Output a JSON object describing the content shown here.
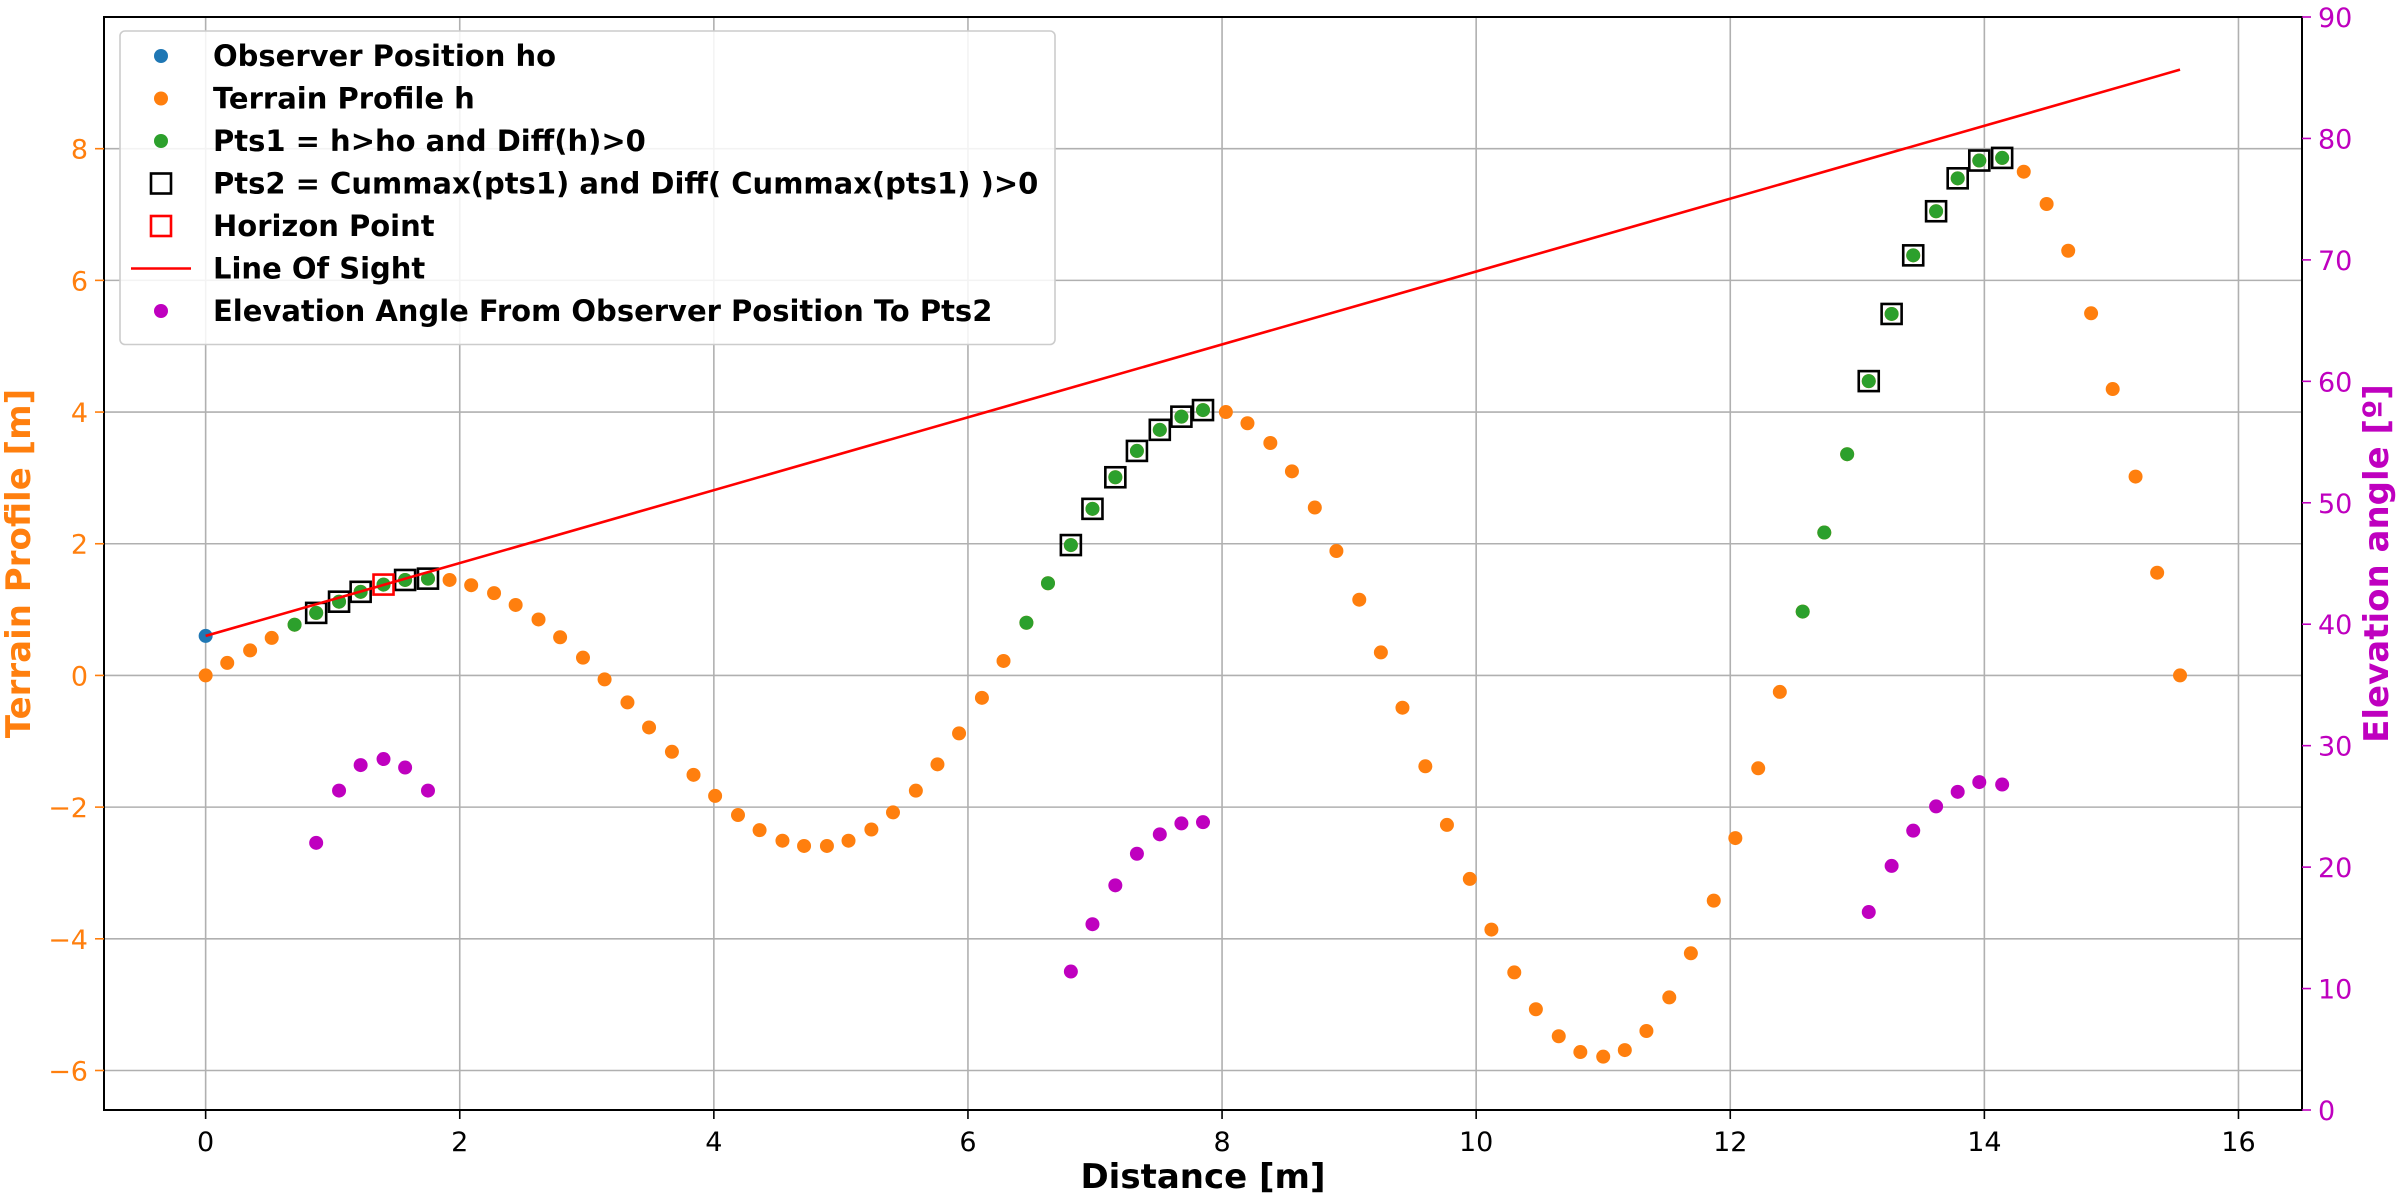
{
  "chart_data": {
    "type": "scatter",
    "title": "",
    "xlabel": "Distance [m]",
    "ylabel": "Terrain Profile [m]",
    "y2label": "Elevation angle [º]",
    "xlim": [
      -0.8,
      16.5
    ],
    "ylim": [
      -6.6,
      10.0
    ],
    "y2lim": [
      0,
      90
    ],
    "xticks": [
      0,
      2,
      4,
      6,
      8,
      10,
      12,
      14,
      16
    ],
    "xtick_labels": [
      "0",
      "2",
      "4",
      "6",
      "8",
      "10",
      "12",
      "14",
      "16"
    ],
    "yticks": [
      -6,
      -4,
      -2,
      0,
      2,
      4,
      6,
      8
    ],
    "ytick_labels": [
      "−6",
      "−4",
      "−2",
      "0",
      "2",
      "4",
      "6",
      "8"
    ],
    "y2ticks": [
      0,
      10,
      20,
      30,
      40,
      50,
      60,
      70,
      80,
      90
    ],
    "y2tick_labels": [
      "0",
      "10",
      "20",
      "30",
      "40",
      "50",
      "60",
      "70",
      "80",
      "90"
    ],
    "grid": true,
    "legend_location": "upper-left",
    "colors": {
      "observer": "#1f77b4",
      "terrain": "#ff7f0e",
      "pts1": "#2ca02c",
      "pts2": "#000000",
      "horizon": "#ff0000",
      "line_of_sight": "#ff0000",
      "elevation": "#bf00bf",
      "left_axis": "#ff7f0e",
      "right_axis": "#bf00bf"
    },
    "legend": [
      {
        "label": "Observer Position ho",
        "marker": "dot",
        "color": "#1f77b4"
      },
      {
        "label": "Terrain Profile h",
        "marker": "dot",
        "color": "#ff7f0e"
      },
      {
        "label": "Pts1 = h>ho and Diff(h)>0",
        "marker": "dot",
        "color": "#2ca02c"
      },
      {
        "label": "Pts2 = Cummax(pts1) and Diff( Cummax(pts1) )>0",
        "marker": "square",
        "color": "#000000"
      },
      {
        "label": "Horizon Point",
        "marker": "square",
        "color": "#ff0000"
      },
      {
        "label": "Line Of Sight",
        "marker": "line",
        "color": "#ff0000"
      },
      {
        "label": "Elevation Angle From Observer Position To Pts2",
        "marker": "dot",
        "color": "#bf00bf"
      }
    ],
    "series": [
      {
        "name": "Observer Position ho",
        "axis": "left",
        "points": [
          [
            0,
            0.6
          ]
        ]
      },
      {
        "name": "Terrain Profile h",
        "axis": "left",
        "points": [
          [
            0.0,
            0.0
          ],
          [
            0.17,
            0.19
          ],
          [
            0.35,
            0.38
          ],
          [
            0.52,
            0.57
          ],
          [
            0.7,
            0.77
          ],
          [
            0.87,
            0.95
          ],
          [
            1.05,
            1.12
          ],
          [
            1.22,
            1.27
          ],
          [
            1.4,
            1.38
          ],
          [
            1.57,
            1.45
          ],
          [
            1.75,
            1.47
          ],
          [
            1.92,
            1.45
          ],
          [
            2.09,
            1.37
          ],
          [
            2.27,
            1.25
          ],
          [
            2.44,
            1.07
          ],
          [
            2.62,
            0.85
          ],
          [
            2.79,
            0.58
          ],
          [
            2.97,
            0.27
          ],
          [
            3.14,
            -0.06
          ],
          [
            3.32,
            -0.41
          ],
          [
            3.49,
            -0.79
          ],
          [
            3.67,
            -1.16
          ],
          [
            3.84,
            -1.51
          ],
          [
            4.01,
            -1.83
          ],
          [
            4.19,
            -2.12
          ],
          [
            4.36,
            -2.35
          ],
          [
            4.54,
            -2.51
          ],
          [
            4.71,
            -2.59
          ],
          [
            4.89,
            -2.59
          ],
          [
            5.06,
            -2.51
          ],
          [
            5.24,
            -2.34
          ],
          [
            5.41,
            -2.08
          ],
          [
            5.59,
            -1.75
          ],
          [
            5.76,
            -1.35
          ],
          [
            5.93,
            -0.88
          ],
          [
            6.11,
            -0.34
          ],
          [
            6.28,
            0.22
          ],
          [
            6.46,
            0.8
          ],
          [
            6.63,
            1.4
          ],
          [
            6.81,
            1.98
          ],
          [
            6.98,
            2.53
          ],
          [
            7.16,
            3.01
          ],
          [
            7.33,
            3.41
          ],
          [
            7.51,
            3.73
          ],
          [
            7.68,
            3.93
          ],
          [
            7.85,
            4.03
          ],
          [
            8.03,
            4.0
          ],
          [
            8.2,
            3.83
          ],
          [
            8.38,
            3.53
          ],
          [
            8.55,
            3.1
          ],
          [
            8.73,
            2.55
          ],
          [
            8.9,
            1.89
          ],
          [
            9.08,
            1.15
          ],
          [
            9.25,
            0.35
          ],
          [
            9.42,
            -0.49
          ],
          [
            9.6,
            -1.38
          ],
          [
            9.77,
            -2.27
          ],
          [
            9.95,
            -3.09
          ],
          [
            10.12,
            -3.86
          ],
          [
            10.3,
            -4.51
          ],
          [
            10.47,
            -5.07
          ],
          [
            10.65,
            -5.48
          ],
          [
            10.82,
            -5.72
          ],
          [
            11.0,
            -5.79
          ],
          [
            11.17,
            -5.69
          ],
          [
            11.34,
            -5.4
          ],
          [
            11.52,
            -4.89
          ],
          [
            11.69,
            -4.22
          ],
          [
            11.87,
            -3.42
          ],
          [
            12.04,
            -2.47
          ],
          [
            12.22,
            -1.41
          ],
          [
            12.39,
            -0.25
          ],
          [
            12.57,
            0.97
          ],
          [
            12.74,
            2.17
          ],
          [
            12.92,
            3.36
          ],
          [
            13.09,
            4.47
          ],
          [
            13.27,
            5.49
          ],
          [
            13.44,
            6.38
          ],
          [
            13.62,
            7.05
          ],
          [
            13.79,
            7.55
          ],
          [
            13.96,
            7.82
          ],
          [
            14.14,
            7.86
          ],
          [
            14.31,
            7.65
          ],
          [
            14.49,
            7.16
          ],
          [
            14.66,
            6.45
          ],
          [
            14.84,
            5.5
          ],
          [
            15.01,
            4.35
          ],
          [
            15.19,
            3.02
          ],
          [
            15.36,
            1.56
          ],
          [
            15.54,
            0.0
          ]
        ]
      },
      {
        "name": "Pts1 = h>ho and Diff(h)>0",
        "axis": "left",
        "points": [
          [
            0.7,
            0.77
          ],
          [
            0.87,
            0.95
          ],
          [
            1.05,
            1.12
          ],
          [
            1.22,
            1.27
          ],
          [
            1.4,
            1.38
          ],
          [
            1.57,
            1.45
          ],
          [
            1.75,
            1.47
          ],
          [
            6.46,
            0.8
          ],
          [
            6.63,
            1.4
          ],
          [
            6.81,
            1.98
          ],
          [
            6.98,
            2.53
          ],
          [
            7.16,
            3.01
          ],
          [
            7.33,
            3.41
          ],
          [
            7.51,
            3.73
          ],
          [
            7.68,
            3.93
          ],
          [
            7.85,
            4.03
          ],
          [
            12.57,
            0.97
          ],
          [
            12.74,
            2.17
          ],
          [
            12.92,
            3.36
          ],
          [
            13.09,
            4.47
          ],
          [
            13.27,
            5.49
          ],
          [
            13.44,
            6.38
          ],
          [
            13.62,
            7.05
          ],
          [
            13.79,
            7.55
          ],
          [
            13.96,
            7.82
          ],
          [
            14.14,
            7.86
          ]
        ]
      },
      {
        "name": "Pts2 = Cummax(pts1) and Diff( Cummax(pts1) )>0",
        "axis": "left",
        "points": [
          [
            0.87,
            0.95
          ],
          [
            1.05,
            1.12
          ],
          [
            1.22,
            1.27
          ],
          [
            1.57,
            1.45
          ],
          [
            1.75,
            1.47
          ],
          [
            6.81,
            1.98
          ],
          [
            6.98,
            2.53
          ],
          [
            7.16,
            3.01
          ],
          [
            7.33,
            3.41
          ],
          [
            7.51,
            3.73
          ],
          [
            7.68,
            3.93
          ],
          [
            7.85,
            4.03
          ],
          [
            13.09,
            4.47
          ],
          [
            13.27,
            5.49
          ],
          [
            13.44,
            6.38
          ],
          [
            13.62,
            7.05
          ],
          [
            13.79,
            7.55
          ],
          [
            13.96,
            7.82
          ],
          [
            14.14,
            7.86
          ]
        ]
      },
      {
        "name": "Horizon Point",
        "axis": "left",
        "points": [
          [
            1.4,
            1.38
          ]
        ]
      },
      {
        "name": "Line Of Sight",
        "axis": "left",
        "line": [
          [
            0,
            0.6
          ],
          [
            15.54,
            9.2
          ]
        ]
      },
      {
        "name": "Elevation Angle From Observer Position To Pts2",
        "axis": "right",
        "points": [
          [
            0.87,
            22.0
          ],
          [
            1.05,
            26.3
          ],
          [
            1.22,
            28.4
          ],
          [
            1.4,
            28.9
          ],
          [
            1.57,
            28.2
          ],
          [
            1.75,
            26.3
          ],
          [
            6.81,
            11.4
          ],
          [
            6.98,
            15.3
          ],
          [
            7.16,
            18.5
          ],
          [
            7.33,
            21.1
          ],
          [
            7.51,
            22.7
          ],
          [
            7.68,
            23.6
          ],
          [
            7.85,
            23.7
          ],
          [
            13.09,
            16.3
          ],
          [
            13.27,
            20.1
          ],
          [
            13.44,
            23.0
          ],
          [
            13.62,
            25.0
          ],
          [
            13.79,
            26.2
          ],
          [
            13.96,
            27.0
          ],
          [
            14.14,
            26.8
          ]
        ]
      }
    ]
  }
}
